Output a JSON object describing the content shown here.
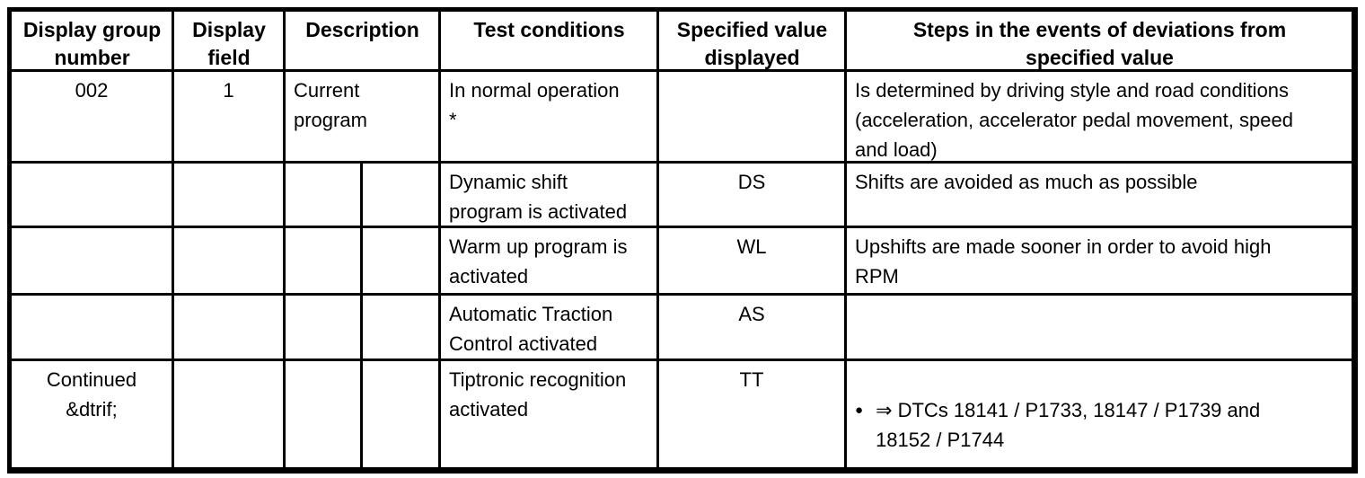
{
  "table": {
    "header": {
      "display_group_number": "Display group\nnumber",
      "display_field": "Display\nfield",
      "description": "Description",
      "test_conditions": "Test conditions",
      "specified_value": "Specified value\ndisplayed",
      "deviation_steps": "Steps in the events of deviations from\nspecified value"
    },
    "rows": [
      {
        "display_group_number": "002",
        "display_field": "1",
        "description": "Current\nprogram",
        "test_conditions": "In normal operation\n*",
        "specified_value": "",
        "deviation_steps": "Is determined by driving style and road conditions\n(acceleration, accelerator pedal movement, speed\nand load)"
      },
      {
        "display_group_number": "",
        "display_field": "",
        "description_left": "",
        "description_right": "",
        "test_conditions": "Dynamic shift\nprogram is activated",
        "specified_value": "DS",
        "deviation_steps": "Shifts are avoided as much as possible"
      },
      {
        "display_group_number": "",
        "display_field": "",
        "description_left": "",
        "description_right": "",
        "test_conditions": "Warm up program is\nactivated",
        "specified_value": "WL",
        "deviation_steps": "Upshifts are made sooner in order to avoid high\nRPM"
      },
      {
        "display_group_number": "",
        "display_field": "",
        "description_left": "",
        "description_right": "",
        "test_conditions": "Automatic Traction\nControl activated",
        "specified_value": "AS",
        "deviation_steps": ""
      },
      {
        "display_group_number": "Continued\n&dtrif;",
        "display_field": "",
        "description_left": "",
        "description_right": "",
        "test_conditions": "Tiptronic recognition\nactivated",
        "specified_value": "TT",
        "deviation_bullet": "●",
        "deviation_text": "⇒ DTCs 18141 / P1733, 18147 / P1739 and\n18152 / P1744"
      }
    ]
  }
}
